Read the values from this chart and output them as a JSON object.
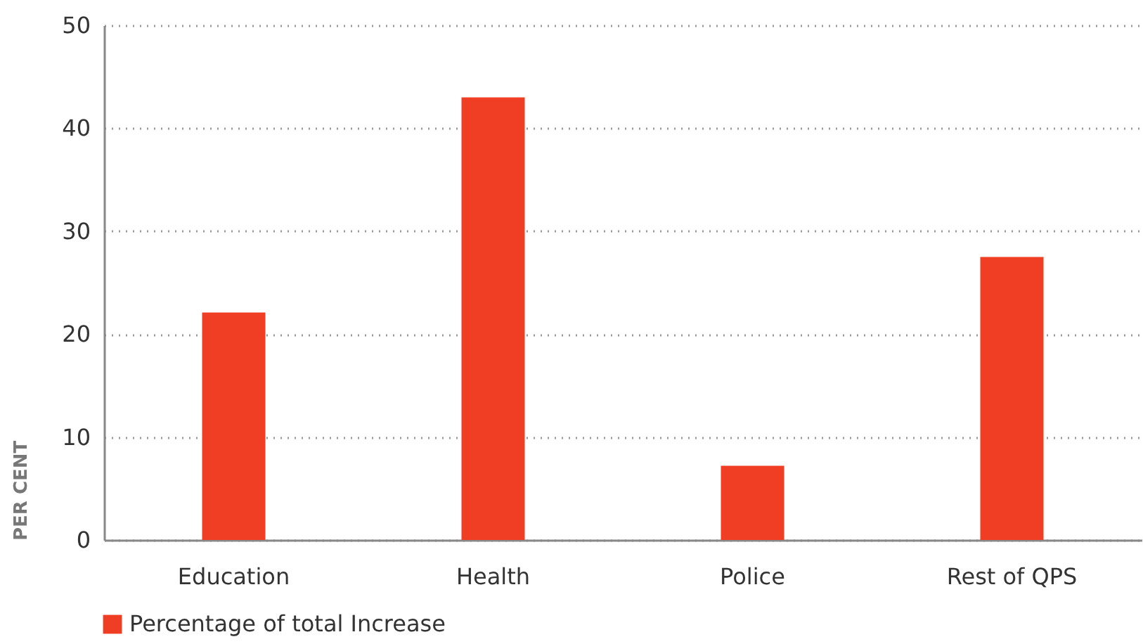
{
  "chart_data": {
    "type": "bar",
    "ylabel": "PER CENT",
    "categories": [
      "Education",
      "Health",
      "Police",
      "Rest of QPS"
    ],
    "series": [
      {
        "name": "Percentage of total Increase",
        "color": "#ef3e23",
        "values": [
          22.1,
          43.0,
          7.2,
          27.5
        ]
      }
    ],
    "ylim": [
      0,
      50
    ],
    "yticks": [
      0,
      10,
      20,
      30,
      40,
      50
    ],
    "grid": "y",
    "legend": "bottom left"
  }
}
